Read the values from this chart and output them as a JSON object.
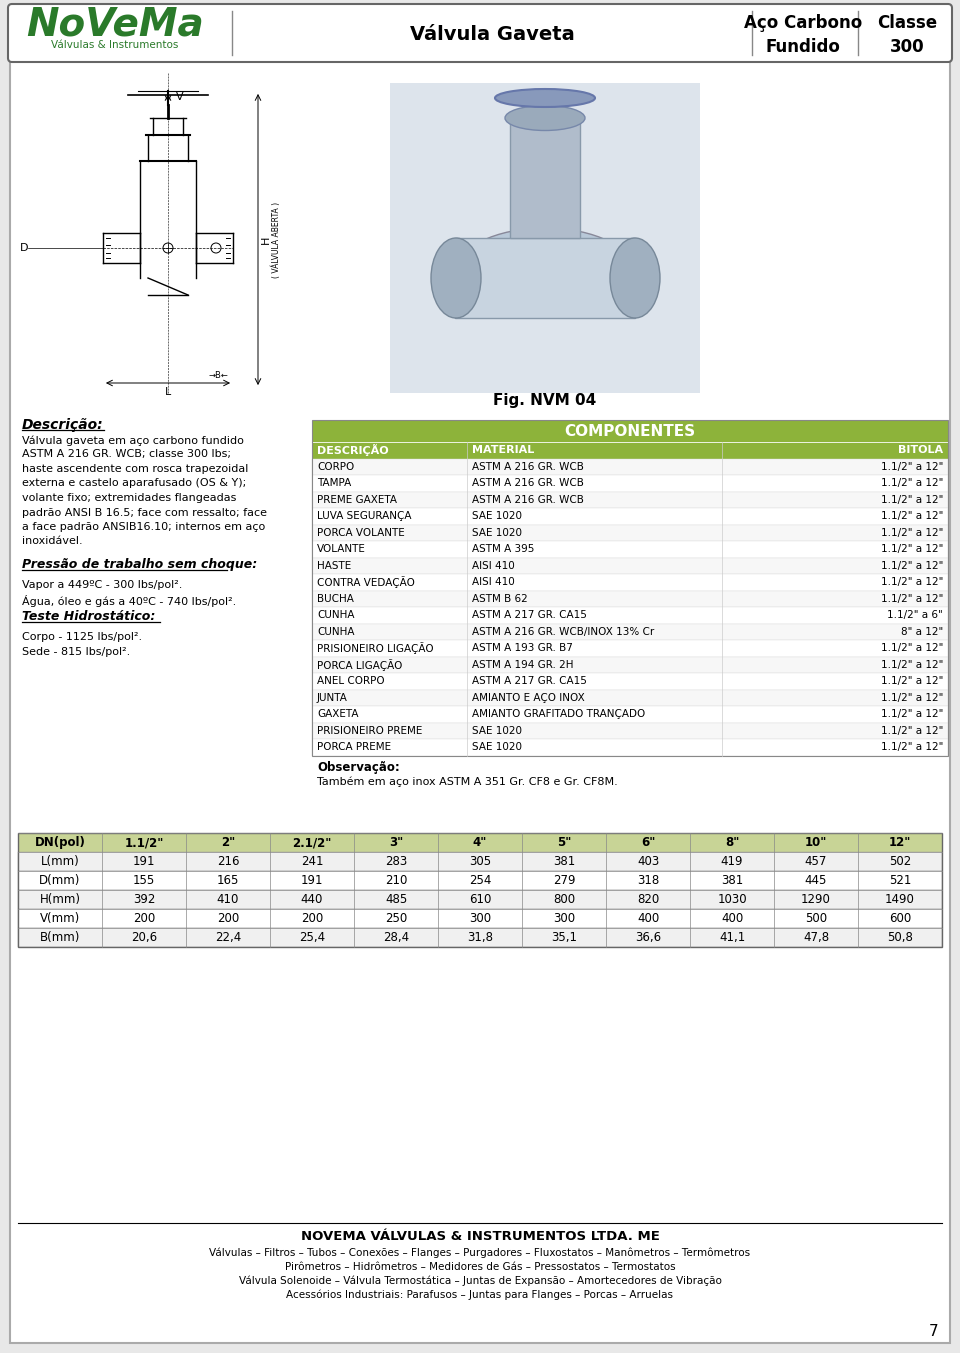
{
  "page_bg": "#e8e8e8",
  "content_bg": "#ffffff",
  "header": {
    "logo_text_main": "NoVeMa",
    "logo_text_sub": "Válvulas & Instrumentos",
    "center_text": "Válvula Gaveta",
    "right_text1": "Aço Carbono\nFundido",
    "right_text2": "Classe\n300"
  },
  "description_title": "Descrição:",
  "description_text": "Válvula gaveta em aço carbono fundido\nASTM A 216 GR. WCB; classe 300 lbs;\nhaste ascendente com rosca trapezoidal\nexterna e castelo aparafusado (OS & Y);\nvolante fixo; extremidades flangeadas\npadrão ANSI B 16.5; face com ressalto; face\na face padrão ANSIB16.10; internos em aço\ninoxidável.",
  "pressure_title": "Pressão de trabalho sem choque:",
  "pressure_lines": [
    "Vapor a 449ºC - 300 lbs/pol².",
    "Água, óleo e gás a 40ºC - 740 lbs/pol²."
  ],
  "hydro_title": "Teste Hidrostático:",
  "hydro_lines": [
    "Corpo - 1125 lbs/pol².",
    "Sede - 815 lbs/pol²."
  ],
  "fig_label": "Fig. NVM 04",
  "table_title": "COMPONENTES",
  "table_header": [
    "DESCRIÇÃO",
    "MATERIAL",
    "BITOLA"
  ],
  "table_header_bg": "#8db33a",
  "table_title_bg": "#8db33a",
  "table_rows": [
    [
      "CORPO",
      "ASTM A 216 GR. WCB",
      "1.1/2\" a 12\""
    ],
    [
      "TAMPA",
      "ASTM A 216 GR. WCB",
      "1.1/2\" a 12\""
    ],
    [
      "PREME GAXETA",
      "ASTM A 216 GR. WCB",
      "1.1/2\" a 12\""
    ],
    [
      "LUVA SEGURANÇA",
      "SAE 1020",
      "1.1/2\" a 12\""
    ],
    [
      "PORCA VOLANTE",
      "SAE 1020",
      "1.1/2\" a 12\""
    ],
    [
      "VOLANTE",
      "ASTM A 395",
      "1.1/2\" a 12\""
    ],
    [
      "HASTE",
      "AISI 410",
      "1.1/2\" a 12\""
    ],
    [
      "CONTRA VEDAÇÃO",
      "AISI 410",
      "1.1/2\" a 12\""
    ],
    [
      "BUCHA",
      "ASTM B 62",
      "1.1/2\" a 12\""
    ],
    [
      "CUNHA",
      "ASTM A 217 GR. CA15",
      "1.1/2\" a 6\""
    ],
    [
      "CUNHA",
      "ASTM A 216 GR. WCB/INOX 13% Cr",
      "8\" a 12\""
    ],
    [
      "PRISIONEIRO LIGAÇÃO",
      "ASTM A 193 GR. B7",
      "1.1/2\" a 12\""
    ],
    [
      "PORCA LIGAÇÃO",
      "ASTM A 194 GR. 2H",
      "1.1/2\" a 12\""
    ],
    [
      "ANEL CORPO",
      "ASTM A 217 GR. CA15",
      "1.1/2\" a 12\""
    ],
    [
      "JUNTA",
      "AMIANTO E AÇO INOX",
      "1.1/2\" a 12\""
    ],
    [
      "GAXETA",
      "AMIANTO GRAFITADO TRANÇADO",
      "1.1/2\" a 12\""
    ],
    [
      "PRISIONEIRO PREME",
      "SAE 1020",
      "1.1/2\" a 12\""
    ],
    [
      "PORCA PREME",
      "SAE 1020",
      "1.1/2\" a 12\""
    ]
  ],
  "obs_title": "Observação:",
  "obs_text": "Também em aço inox ASTM A 351 Gr. CF8 e Gr. CF8M.",
  "dim_table_headers": [
    "DN(pol)",
    "1.1/2\"",
    "2\"",
    "2.1/2\"",
    "3\"",
    "4\"",
    "5\"",
    "6\"",
    "8\"",
    "10\"",
    "12\""
  ],
  "dim_rows": [
    [
      "L(mm)",
      "191",
      "216",
      "241",
      "283",
      "305",
      "381",
      "403",
      "419",
      "457",
      "502"
    ],
    [
      "D(mm)",
      "155",
      "165",
      "191",
      "210",
      "254",
      "279",
      "318",
      "381",
      "445",
      "521"
    ],
    [
      "H(mm)",
      "392",
      "410",
      "440",
      "485",
      "610",
      "800",
      "820",
      "1030",
      "1290",
      "1490"
    ],
    [
      "V(mm)",
      "200",
      "200",
      "200",
      "250",
      "300",
      "300",
      "400",
      "400",
      "500",
      "600"
    ],
    [
      "B(mm)",
      "20,6",
      "22,4",
      "25,4",
      "28,4",
      "31,8",
      "35,1",
      "36,6",
      "41,1",
      "47,8",
      "50,8"
    ]
  ],
  "footer_company": "NOVEMA VÁLVULAS & INSTRUMENTOS LTDA. ME",
  "footer_lines": [
    "Válvulas – Filtros – Tubos – Conexões – Flanges – Purgadores – Fluxostatos – Manômetros – Termômetros",
    "Pirômetros – Hidrômetros – Medidores de Gás – Pressostatos – Termostatos",
    "Válvula Solenoide – Válvula Termostática – Juntas de Expansão – Amortecedores de Vibração",
    "Acessórios Industriais: Parafusos – Juntas para Flanges – Porcas – Arruelas"
  ],
  "page_number": "7"
}
